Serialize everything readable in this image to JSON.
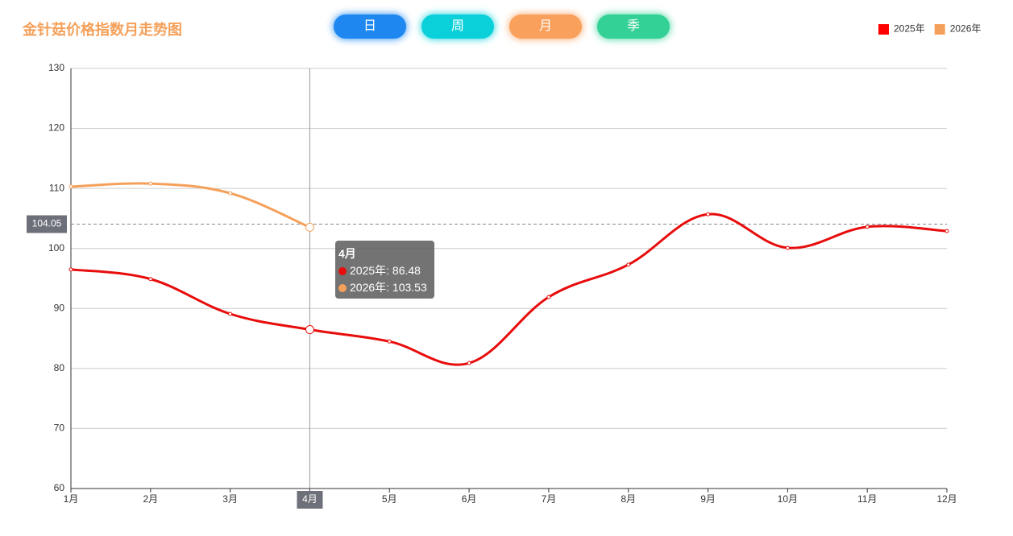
{
  "chart_data": {
    "type": "line",
    "title": "金针菇价格指数月走势图",
    "buttons": [
      {
        "label": "日",
        "color": "#1e88f0"
      },
      {
        "label": "周",
        "color": "#0ad0da"
      },
      {
        "label": "月",
        "color": "#f9a05c"
      },
      {
        "label": "季",
        "color": "#33d196"
      }
    ],
    "categories": [
      "1月",
      "2月",
      "3月",
      "4月",
      "5月",
      "6月",
      "7月",
      "8月",
      "9月",
      "10月",
      "11月",
      "12月"
    ],
    "series": [
      {
        "name": "2025年",
        "color": "#e80c0c",
        "values": [
          96.5,
          94.9,
          89.1,
          86.48,
          84.5,
          80.9,
          91.9,
          97.3,
          105.7,
          100.1,
          103.6,
          102.9
        ]
      },
      {
        "name": "2026年",
        "color": "#f5a05a",
        "values": [
          110.3,
          110.8,
          109.2,
          103.53,
          null,
          null,
          null,
          null,
          null,
          null,
          null,
          null
        ]
      }
    ],
    "ylim": [
      60,
      130
    ],
    "yticks": [
      60,
      70,
      80,
      90,
      100,
      110,
      120,
      130
    ],
    "grid": true,
    "legend": "top-right",
    "axis_pointer": {
      "value": 104.05
    },
    "tooltip": {
      "category": "4月",
      "items": [
        "2025年: 86.48",
        "2026年: 103.53"
      ]
    }
  }
}
